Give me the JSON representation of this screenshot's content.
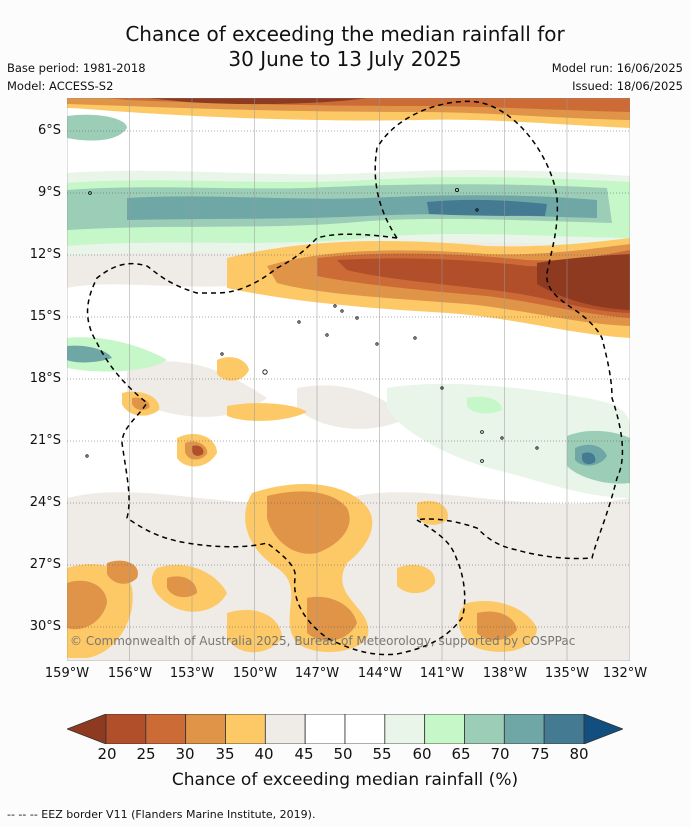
{
  "title": {
    "line1": "Chance of exceeding the median rainfall for",
    "line2": "30 June to 13 July 2025"
  },
  "meta": {
    "base_period": "Base period: 1981-2018",
    "model": "Model: ACCESS-S2",
    "model_run": "Model run: 16/06/2025",
    "issued": "Issued: 18/06/2025"
  },
  "axes": {
    "lat_labels": [
      "6°S",
      "9°S",
      "12°S",
      "15°S",
      "18°S",
      "21°S",
      "24°S",
      "27°S",
      "30°S"
    ],
    "lon_labels": [
      "159°W",
      "156°W",
      "153°W",
      "150°W",
      "147°W",
      "144°W",
      "141°W",
      "138°W",
      "135°W",
      "132°W"
    ]
  },
  "colorbar": {
    "ticks": [
      "20",
      "25",
      "30",
      "35",
      "40",
      "45",
      "50",
      "55",
      "60",
      "65",
      "70",
      "75",
      "80"
    ],
    "colors": [
      "#8e3a20",
      "#b04f2a",
      "#cc6b35",
      "#e09448",
      "#fdc966",
      "#efebe6",
      "#ffffff",
      "#ffffff",
      "#e8f5e8",
      "#c5f7c9",
      "#9ccdb7",
      "#6fa7a6",
      "#457b92",
      "#134f7e"
    ],
    "title": "Chance of exceeding median rainfall (%)"
  },
  "footnote": "--  --  -- EEZ border V11 (Flanders Marine Institute, 2019).",
  "copyright": "© Commonwealth of Australia 2025, Bureau of Meteorology, supported by COSPPac"
}
